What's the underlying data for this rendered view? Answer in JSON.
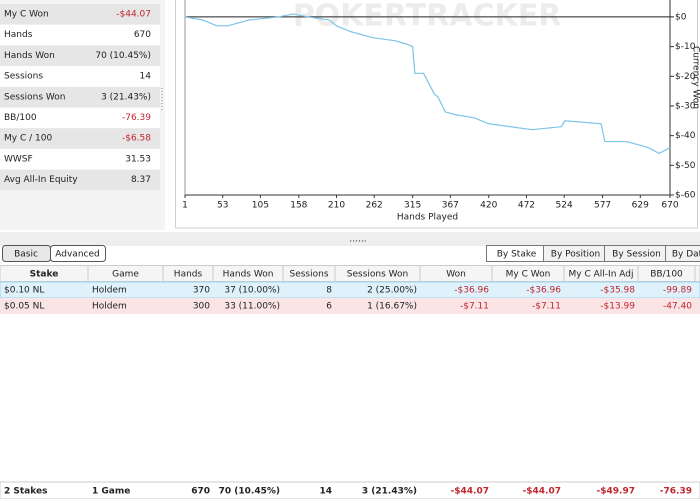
{
  "stats": [
    {
      "label": "My C Won",
      "value": "-$44.07"
    },
    {
      "label": "Hands",
      "value": "670"
    },
    {
      "label": "Hands Won",
      "value": "70 (10.45%)"
    },
    {
      "label": "Sessions",
      "value": "14"
    },
    {
      "label": "Sessions Won",
      "value": "3 (21.43%)"
    },
    {
      "label": "BB/100",
      "value": "-76.39"
    },
    {
      "label": "My C / 100",
      "value": "-$6.58"
    },
    {
      "label": "WWSF",
      "value": "31.53"
    },
    {
      "label": "Avg All-In Equity",
      "value": "8.37"
    }
  ],
  "graph": {
    "type": "line",
    "watermark": "POKERTRACKER",
    "x_label": "Hands Played",
    "y_label": "Currency Won",
    "color": "#7cc4e8",
    "x": [
      1,
      25,
      45,
      60,
      90,
      130,
      150,
      170,
      200,
      210,
      230,
      260,
      290,
      305,
      315,
      318,
      330,
      345,
      350,
      360,
      375,
      400,
      420,
      450,
      480,
      520,
      525,
      575,
      580,
      610,
      640,
      655,
      670
    ],
    "values": [
      0,
      -1,
      -3,
      -3,
      -1,
      0,
      1,
      0,
      -1,
      -3,
      -5,
      -7,
      -8,
      -9,
      -10,
      -19,
      -19,
      -26,
      -27,
      -32,
      -33,
      -34,
      -36,
      -37,
      -38,
      -37,
      -35,
      -36,
      -42,
      -42,
      -44,
      -46,
      -44.07
    ],
    "xlim": [
      1,
      670
    ],
    "ylim": [
      -60,
      5.7
    ],
    "xticks": [
      1,
      53,
      105,
      158,
      210,
      262,
      315,
      367,
      420,
      472,
      524,
      577,
      629,
      670
    ],
    "yticks": [
      {
        "value": 0,
        "label": "$0"
      },
      {
        "value": -10,
        "label": "$-10"
      },
      {
        "value": -20,
        "label": "$-20"
      },
      {
        "value": -30,
        "label": "$-30"
      },
      {
        "value": -40,
        "label": "$-40"
      },
      {
        "value": -50,
        "label": "$-50"
      },
      {
        "value": -60,
        "label": "$-60"
      }
    ]
  },
  "splitter": "......",
  "toolbar": {
    "left": [
      "Basic",
      "Advanced"
    ],
    "right": [
      "By Stake",
      "By Position",
      "By Session",
      "By Dat"
    ]
  },
  "table": {
    "columns": [
      "Stake",
      "Game",
      "Hands",
      "Hands Won",
      "Sessions",
      "Sessions Won",
      "Won",
      "My C Won",
      "My C All-In Adj",
      "BB/100"
    ],
    "rows": [
      [
        "$0.10 NL",
        "Holdem",
        "370",
        "37 (10.00%)",
        "8",
        "2 (25.00%)",
        "-$36.96",
        "-$36.96",
        "-$35.98",
        "-99.89"
      ],
      [
        "$0.05 NL",
        "Holdem",
        "300",
        "33 (11.00%)",
        "6",
        "1 (16.67%)",
        "-$7.11",
        "-$7.11",
        "-$13.99",
        "-47.40"
      ]
    ],
    "footer": [
      "2 Stakes",
      "1 Game",
      "670",
      "70 (10.45%)",
      "14",
      "3 (21.43%)",
      "-$44.07",
      "-$44.07",
      "-$49.97",
      "-76.39"
    ]
  }
}
